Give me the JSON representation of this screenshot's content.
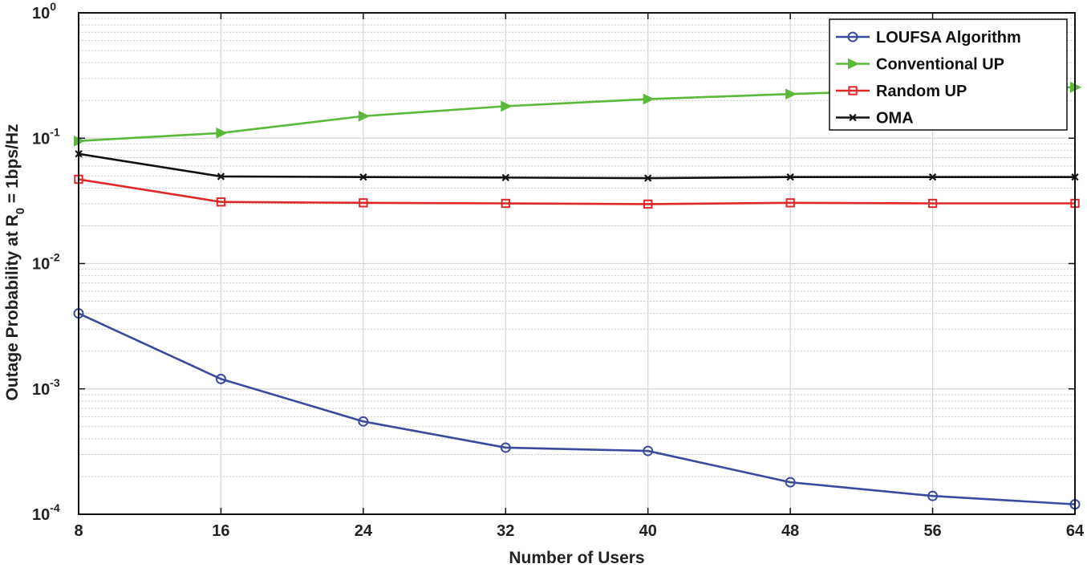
{
  "chart_data": {
    "type": "line",
    "xlabel": "Number of Users",
    "ylabel_parts": [
      "Outage Probability at R",
      "0",
      " = 1bps/Hz"
    ],
    "x": [
      8,
      16,
      24,
      32,
      40,
      48,
      56,
      64
    ],
    "xlim": [
      8,
      64
    ],
    "ylim": [
      0.0001,
      1
    ],
    "yscale": "log",
    "x_tick_labels": [
      "8",
      "16",
      "24",
      "32",
      "40",
      "48",
      "56",
      "64"
    ],
    "y_ticks": [
      {
        "base": "10",
        "exp": "-4",
        "value": 0.0001
      },
      {
        "base": "10",
        "exp": "-3",
        "value": 0.001
      },
      {
        "base": "10",
        "exp": "-2",
        "value": 0.01
      },
      {
        "base": "10",
        "exp": "-1",
        "value": 0.1
      },
      {
        "base": "10",
        "exp": "0",
        "value": 1
      }
    ],
    "grid": true,
    "legend_position": "top-right",
    "series": [
      {
        "name": "LOUFSA Algorithm",
        "color": "#3a4a9e",
        "marker": "circle",
        "values": [
          0.004,
          0.0012,
          0.00055,
          0.00034,
          0.00032,
          0.00018,
          0.00014,
          0.00012
        ]
      },
      {
        "name": "Conventional UP",
        "color": "#5cb83a",
        "marker": "triangle-right",
        "values": [
          0.095,
          0.11,
          0.15,
          0.18,
          0.205,
          0.225,
          0.245,
          0.255
        ]
      },
      {
        "name": "Random UP",
        "color": "#e02828",
        "marker": "square",
        "values": [
          0.047,
          0.031,
          0.0305,
          0.0302,
          0.0298,
          0.0305,
          0.0302,
          0.0302
        ]
      },
      {
        "name": "OMA",
        "color": "#111111",
        "marker": "x",
        "values": [
          0.075,
          0.0495,
          0.049,
          0.0485,
          0.048,
          0.049,
          0.049,
          0.049
        ]
      }
    ]
  }
}
